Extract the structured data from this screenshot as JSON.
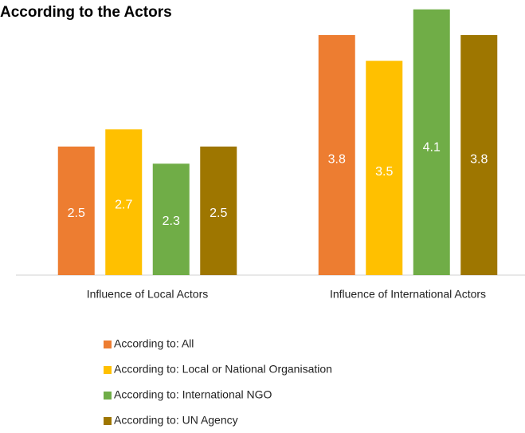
{
  "chart_data": {
    "type": "bar",
    "title": "According to the Actors",
    "categories": [
      "Influence of Local Actors",
      "Influence of International Actors"
    ],
    "series": [
      {
        "name": "According to: All",
        "color": "#ed7d31",
        "values": [
          2.5,
          3.8
        ]
      },
      {
        "name": "According to: Local or National Organisation",
        "color": "#ffc000",
        "values": [
          2.7,
          3.5
        ]
      },
      {
        "name": "According to: International NGO",
        "color": "#70ad47",
        "values": [
          2.3,
          4.1
        ]
      },
      {
        "name": "According to: UN Agency",
        "color": "#9e7600",
        "values": [
          2.5,
          3.8
        ]
      }
    ],
    "ylim": [
      1,
      4.2
    ],
    "legend": "bottom"
  }
}
